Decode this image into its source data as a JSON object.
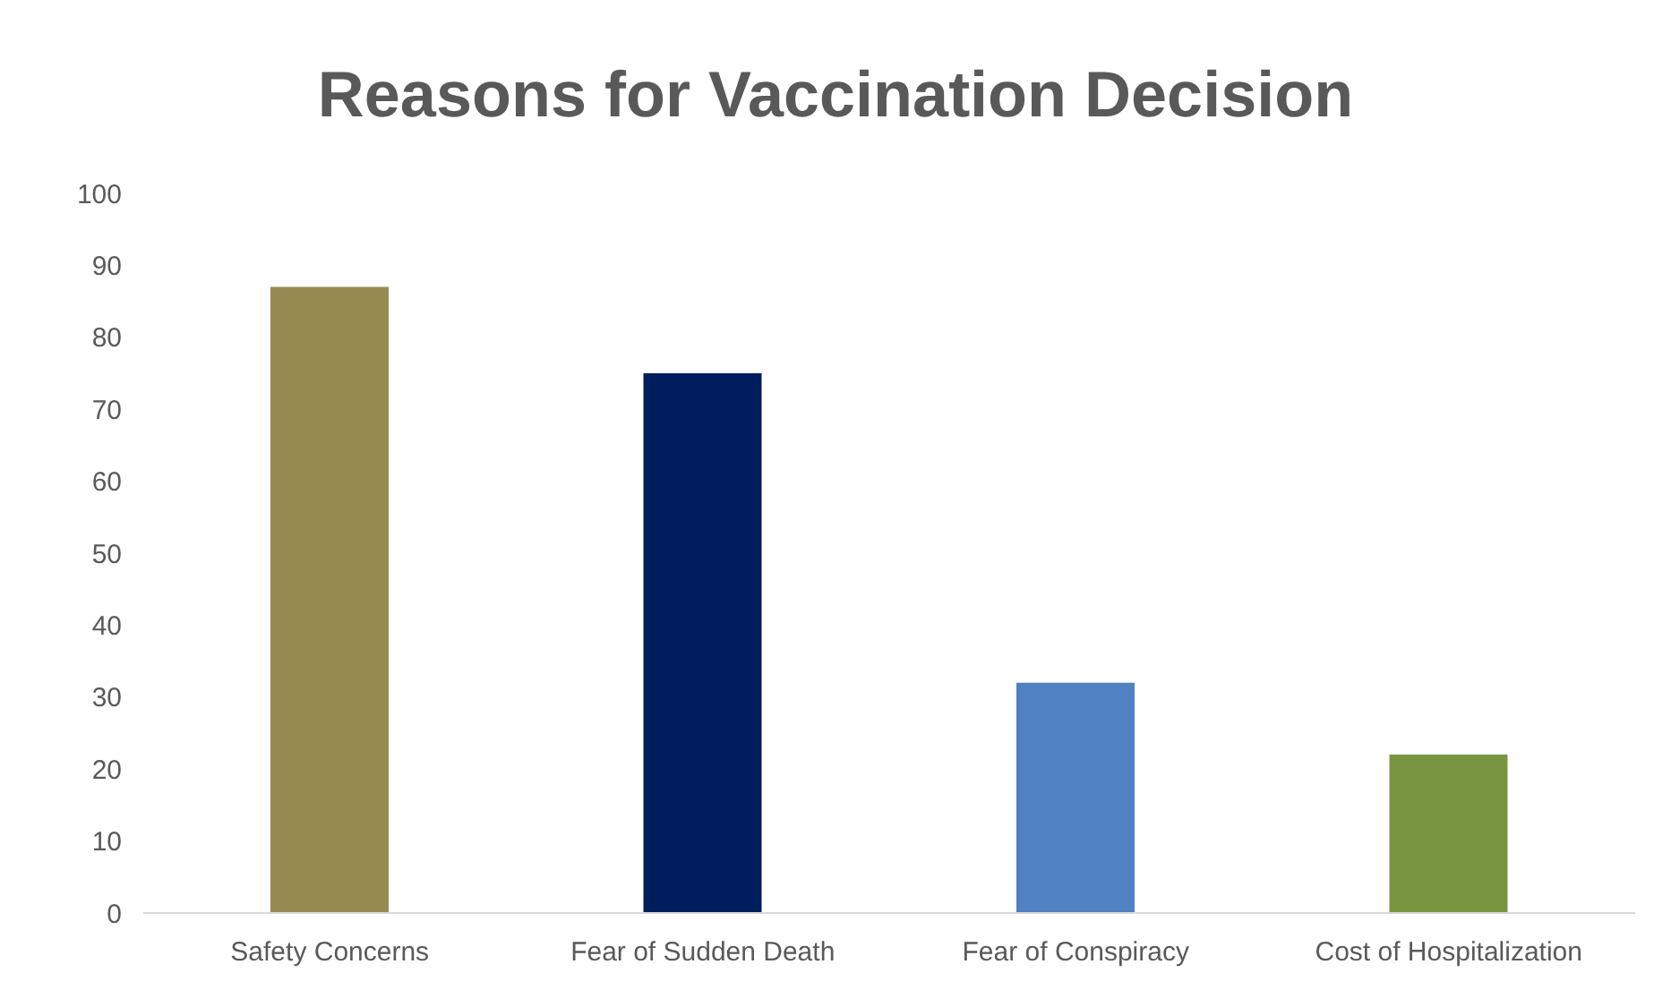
{
  "chart_data": {
    "type": "bar",
    "title": "Reasons for Vaccination Decision",
    "categories": [
      "Safety Concerns",
      "Fear of Sudden Death",
      "Fear of Conspiracy",
      "Cost of Hospitalization"
    ],
    "values": [
      87,
      75,
      32,
      22
    ],
    "colors": [
      "#978a50",
      "#001e5e",
      "#5081c0",
      "#789640"
    ],
    "ylim": [
      0,
      100
    ],
    "yticks": [
      0,
      10,
      20,
      30,
      40,
      50,
      60,
      70,
      80,
      90,
      100
    ],
    "grid": false
  }
}
